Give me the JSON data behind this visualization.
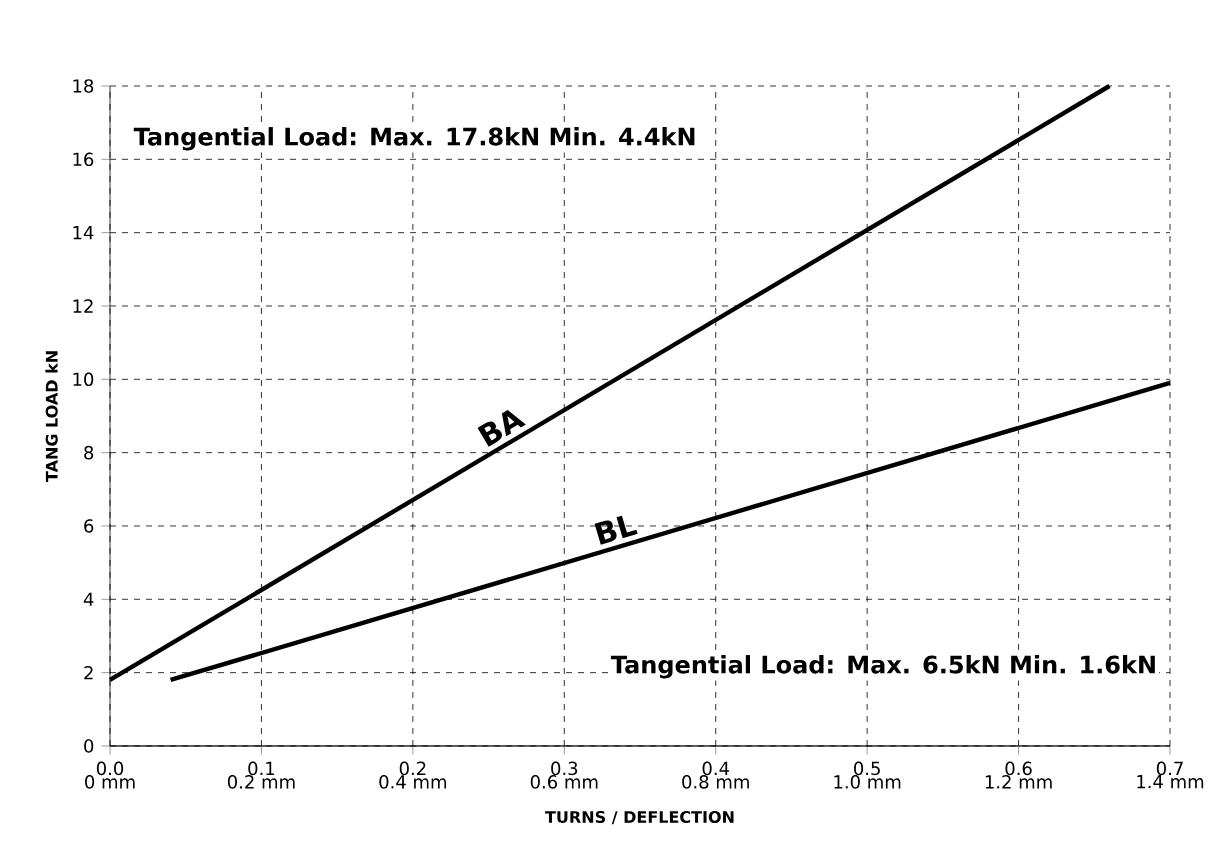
{
  "chart_data": {
    "type": "line",
    "xlabel": "TURNS / DEFLECTION",
    "ylabel": "TANG LOAD kN",
    "xlim": [
      0,
      0.7
    ],
    "ylim": [
      0,
      18
    ],
    "xticks": [
      {
        "value": 0,
        "label": "0.0"
      },
      0.1,
      0.2,
      0.3,
      0.4,
      0.5,
      0.6,
      0.7
    ],
    "x2lim": [
      0,
      1.4
    ],
    "x2ticks": [
      {
        "value": 0,
        "label": "0 mm"
      },
      {
        "value": 0.2,
        "label": "0.2 mm"
      },
      {
        "value": 0.4,
        "label": "0.4 mm"
      },
      {
        "value": 0.6,
        "label": "0.6 mm"
      },
      {
        "value": 0.8,
        "label": "0.8 mm"
      },
      {
        "value": 1.0,
        "label": "1.0 mm"
      },
      {
        "value": 1.2,
        "label": "1.2 mm"
      },
      {
        "value": 1.4,
        "label": "1.4 mm"
      }
    ],
    "yticks": [
      0,
      2,
      4,
      6,
      8,
      10,
      12,
      14,
      16,
      18
    ],
    "grid": true,
    "marker": "none",
    "line_style": "solid",
    "series": [
      {
        "name": "BA",
        "color": "#000000",
        "x": [
          0,
          0.66
        ],
        "values": [
          1.8,
          18
        ]
      },
      {
        "name": "BL",
        "color": "#000000",
        "x": [
          0.04,
          0.7
        ],
        "values": [
          1.8,
          9.9
        ]
      }
    ],
    "annotations": [
      "Tangential Load: Max. 17.8kN   Min. 4.4kN",
      "Tangential Load: Max. 6.5kN   Min. 1.6kN"
    ]
  }
}
